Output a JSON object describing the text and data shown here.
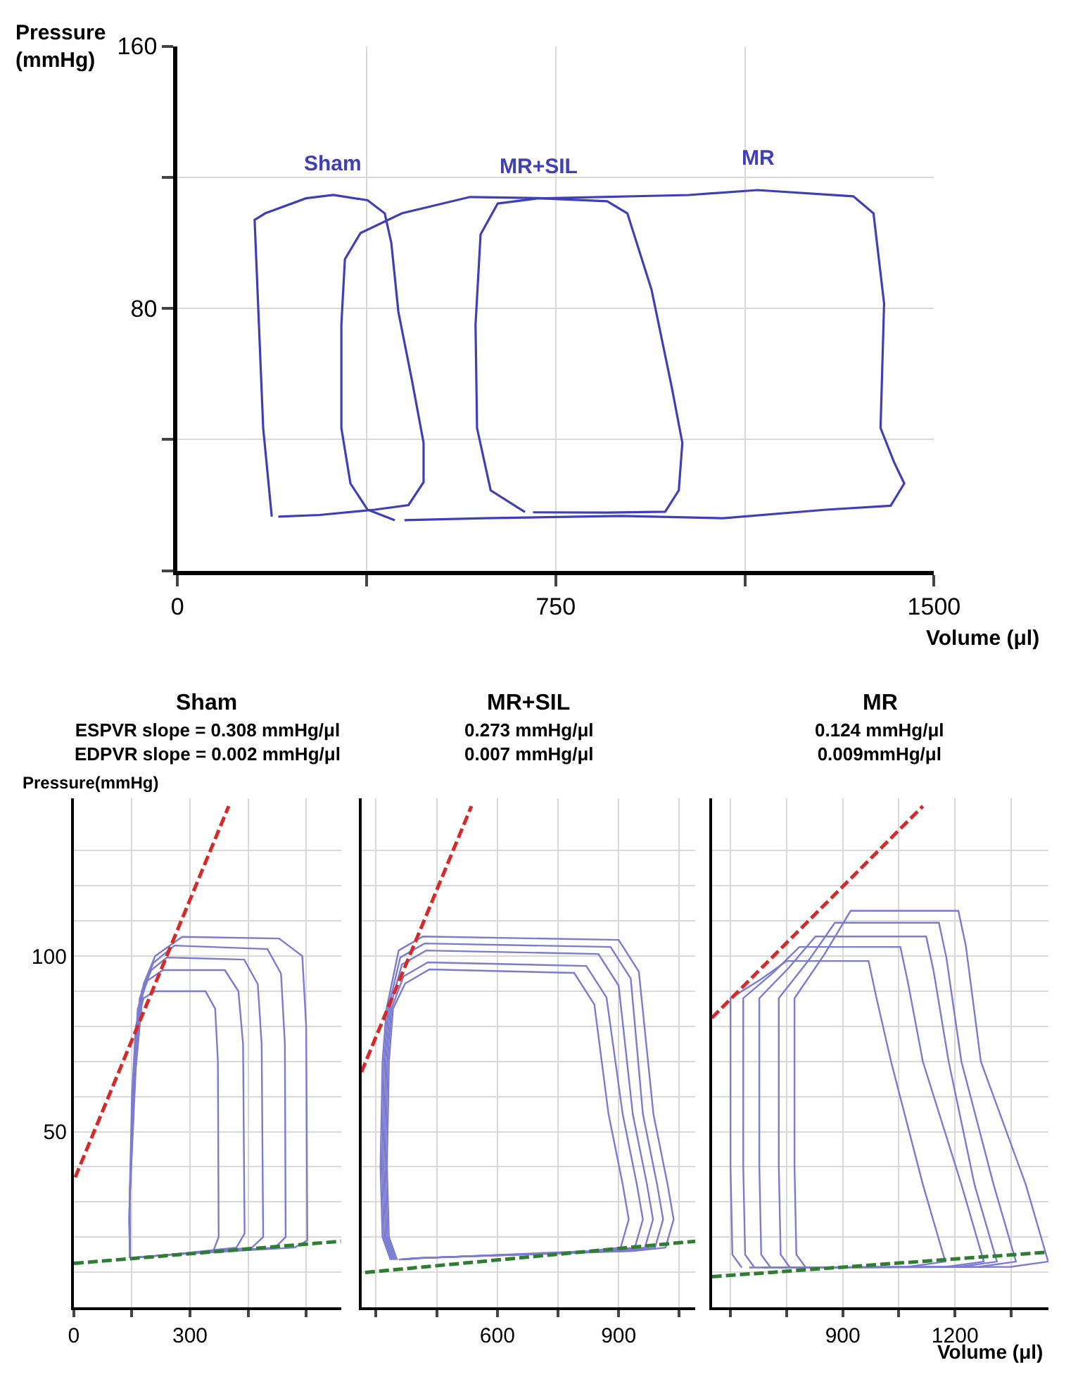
{
  "chart_data": [
    {
      "type": "line",
      "xlabel": "Volume (μl)",
      "ylabel": "Pressure\n(mmHg)",
      "xlim": [
        0,
        1500
      ],
      "ylim": [
        0,
        160
      ],
      "xticks": [
        0,
        {
          "value": 375,
          "label": null
        },
        750,
        {
          "value": 1125,
          "label": null
        },
        1500
      ],
      "yticks": [
        {
          "value": 0,
          "label": null
        },
        {
          "value": 40,
          "label": null
        },
        80,
        {
          "value": 120,
          "label": null
        },
        160
      ],
      "grid": true,
      "series": [
        {
          "name": "Sham",
          "color": "#3f3fb5",
          "x": [
            187,
            170,
            153,
            174,
            255,
            309,
            377,
            411,
            424,
            438,
            465,
            488,
            488,
            458,
            391,
            282,
            200
          ],
          "values": [
            16.5,
            43.5,
            107,
            109,
            113.6,
            114.6,
            113,
            109,
            100,
            79,
            58,
            39,
            27,
            20,
            18.6,
            17,
            16.5
          ]
        },
        {
          "name": "MR+SIL",
          "color": "#3f3fb6",
          "x": [
            689,
            621,
            594,
            591,
            601,
            635,
            716,
            852,
            892,
            940,
            980,
            1001,
            994,
            967,
            852,
            705
          ],
          "values": [
            17.9,
            24.5,
            43.5,
            75,
            102.6,
            112,
            113.6,
            112.7,
            109,
            85.7,
            56,
            39,
            24.5,
            18,
            17.7,
            17.8
          ]
        },
        {
          "name": "MR",
          "color": "#3f3fb7",
          "x": [
            431,
            377,
            343,
            325,
            325,
            332,
            363,
            445,
            580,
            730,
            1014,
            1150,
            1340,
            1380,
            1401,
            1394,
            1421,
            1441,
            1414,
            1286,
            1082,
            879,
            608,
            450
          ],
          "values": [
            15.4,
            18.6,
            26.6,
            43.5,
            75,
            95,
            103,
            109,
            114,
            113.6,
            114.6,
            116.1,
            114.2,
            109,
            81.5,
            43.5,
            33,
            26.6,
            19.8,
            18.6,
            16,
            16.7,
            16,
            15.4
          ]
        }
      ]
    },
    {
      "type": "line",
      "title": "Sham",
      "subtitle": "ESPVR slope = 0.308 mmHg/μl\nEDPVR slope = 0.002 mmHg/μl",
      "ylabel": "Pressure(mmHg)",
      "xlim": [
        0,
        690
      ],
      "ylim": [
        0,
        145
      ],
      "xticks": [
        0,
        {
          "value": 150,
          "label": null
        },
        300,
        {
          "value": 450,
          "label": null
        },
        {
          "value": 600,
          "label": null
        }
      ],
      "yticks": [
        {
          "value": 0,
          "label": null
        },
        {
          "value": 10,
          "label": null
        },
        {
          "value": 20,
          "label": null
        },
        {
          "value": 30,
          "label": null
        },
        {
          "value": 40,
          "label": null
        },
        50,
        {
          "value": 60,
          "label": null
        },
        {
          "value": 70,
          "label": null
        },
        {
          "value": 80,
          "label": null
        },
        {
          "value": 90,
          "label": null
        },
        100,
        {
          "value": 110,
          "label": null
        },
        {
          "value": 120,
          "label": null
        },
        {
          "value": 130,
          "label": null
        }
      ],
      "grid": true,
      "series": [
        {
          "color": "#7b7bd0",
          "x": [
            145,
            143,
            150,
            160,
            180,
            210,
            340,
            365,
            372,
            374,
            360,
            250,
            165
          ],
          "values": [
            14,
            25,
            60,
            80,
            88,
            90,
            90,
            85,
            70,
            20,
            16,
            15,
            14.2
          ]
        },
        {
          "color": "#7b7bd0",
          "x": [
            145,
            143,
            152,
            165,
            190,
            230,
            390,
            425,
            437,
            441,
            420,
            250,
            165
          ],
          "values": [
            14,
            25,
            60,
            85,
            93,
            96,
            96,
            90,
            75,
            21,
            17,
            15,
            14.2
          ]
        },
        {
          "color": "#7b7bd0",
          "x": [
            145,
            144,
            155,
            170,
            200,
            240,
            440,
            475,
            485,
            489,
            460,
            250,
            165
          ],
          "values": [
            14,
            30,
            65,
            88,
            96,
            99.6,
            99,
            92,
            75,
            20,
            17,
            15,
            14.2
          ]
        },
        {
          "color": "#7b7bd0",
          "x": [
            145,
            144,
            157,
            175,
            205,
            260,
            500,
            535,
            545,
            547,
            520,
            250,
            165
          ],
          "values": [
            14,
            30,
            65,
            90,
            98,
            103,
            102,
            95,
            75,
            20,
            17,
            15,
            14.2
          ]
        },
        {
          "color": "#7b7bd0",
          "x": [
            145,
            144,
            160,
            180,
            210,
            280,
            530,
            590,
            600,
            603,
            570,
            250,
            165
          ],
          "values": [
            14,
            30,
            68,
            92,
            100,
            105.5,
            105,
            100,
            80,
            19,
            17,
            15,
            14.2
          ]
        },
        {
          "color": "#d42a2a",
          "line_style": "dashed",
          "x": [
            3.5,
            400
          ],
          "values": [
            37,
            142.7
          ]
        },
        {
          "color": "#2e7d32",
          "line_style": "dashed",
          "x": [
            0,
            690
          ],
          "values": [
            12.5,
            18.8
          ]
        }
      ],
      "tick_labels": "xy"
    },
    {
      "type": "line",
      "title": "MR+SIL",
      "subtitle": "0.273 mmHg/μl\n0.007 mmHg/μl",
      "xlim": [
        264,
        1090
      ],
      "ylim": [
        0,
        145
      ],
      "xticks": [
        {
          "value": 300,
          "label": null
        },
        {
          "value": 450,
          "label": null
        },
        600,
        {
          "value": 750,
          "label": null
        },
        900,
        {
          "value": 1050,
          "label": null
        }
      ],
      "yticks": [
        {
          "value": 0,
          "label": null
        },
        {
          "value": 10,
          "label": null
        },
        {
          "value": 20,
          "label": null
        },
        {
          "value": 30,
          "label": null
        },
        {
          "value": 40,
          "label": null
        },
        {
          "value": 50,
          "label": null
        },
        {
          "value": 60,
          "label": null
        },
        {
          "value": 70,
          "label": null
        },
        {
          "value": 80,
          "label": null
        },
        {
          "value": 90,
          "label": null
        },
        {
          "value": 100,
          "label": null
        },
        {
          "value": 110,
          "label": null
        },
        {
          "value": 120,
          "label": null
        },
        {
          "value": 130,
          "label": null
        }
      ],
      "grid": true,
      "tick_labels": "x",
      "series": [
        {
          "color": "#7b7bd0",
          "x": [
            352,
            332,
            327,
            332,
            342,
            372,
            432,
            790,
            840,
            875,
            910,
            925,
            905,
            825,
            412,
            372
          ],
          "values": [
            13.5,
            20,
            40,
            70,
            85,
            92.2,
            96.2,
            95.2,
            86.2,
            55,
            35,
            25,
            17,
            16,
            14,
            13.6
          ]
        },
        {
          "color": "#7b7bd0",
          "x": [
            348,
            328,
            323,
            328,
            338,
            368,
            428,
            820,
            870,
            910,
            945,
            960,
            940,
            860,
            408,
            368
          ],
          "values": [
            13.5,
            20,
            40,
            70,
            85,
            94.2,
            98.2,
            97.2,
            88.2,
            55,
            35,
            25,
            17,
            16,
            14,
            13.6
          ]
        },
        {
          "color": "#7b7bd0",
          "x": [
            344,
            324,
            319,
            324,
            334,
            364,
            424,
            850,
            900,
            935,
            970,
            985,
            965,
            885,
            404,
            364
          ],
          "values": [
            13.5,
            20,
            40,
            70,
            85,
            97.6,
            101.6,
            100.6,
            91.6,
            55,
            35,
            25,
            17,
            16,
            14,
            13.6
          ]
        },
        {
          "color": "#7b7bd0",
          "x": [
            340,
            320,
            315,
            320,
            330,
            360,
            420,
            880,
            930,
            960,
            995,
            1010,
            990,
            910,
            400,
            360
          ],
          "values": [
            13.5,
            20,
            40,
            70,
            85,
            99.6,
            103.6,
            102.6,
            93.6,
            55,
            35,
            25,
            17,
            16,
            14,
            13.6
          ]
        },
        {
          "color": "#7b7bd0",
          "x": [
            336,
            316,
            311,
            316,
            326,
            356,
            416,
            900,
            950,
            986,
            1021,
            1036,
            1016,
            936,
            396,
            356
          ],
          "values": [
            13.5,
            20,
            40,
            70,
            85,
            101.6,
            105.6,
            104.6,
            95.6,
            55,
            35,
            25,
            17,
            16,
            14,
            13.6
          ]
        },
        {
          "color": "#d42a2a",
          "line_style": "dashed",
          "x": [
            264,
            536
          ],
          "values": [
            67,
            142.7
          ]
        },
        {
          "color": "#2e7d32",
          "line_style": "dashed",
          "x": [
            273,
            1090
          ],
          "values": [
            9.9,
            18.8
          ]
        }
      ]
    },
    {
      "type": "line",
      "title": "MR",
      "subtitle": "0.124 mmHg/μl\n0.009mmHg/μl",
      "xlabel": "Volume (μl)",
      "xlim": [
        550,
        1450
      ],
      "ylim": [
        0,
        145
      ],
      "xticks": [
        {
          "value": 600,
          "label": null
        },
        {
          "value": 750,
          "label": null
        },
        900,
        {
          "value": 1050,
          "label": null
        },
        1200,
        {
          "value": 1350,
          "label": null
        }
      ],
      "yticks": [
        {
          "value": 0,
          "label": null
        },
        {
          "value": 10,
          "label": null
        },
        {
          "value": 20,
          "label": null
        },
        {
          "value": 30,
          "label": null
        },
        {
          "value": 40,
          "label": null
        },
        {
          "value": 50,
          "label": null
        },
        {
          "value": 60,
          "label": null
        },
        {
          "value": 70,
          "label": null
        },
        {
          "value": 80,
          "label": null
        },
        {
          "value": 90,
          "label": null
        },
        {
          "value": 100,
          "label": null
        },
        {
          "value": 110,
          "label": null
        },
        {
          "value": 120,
          "label": null
        },
        {
          "value": 130,
          "label": null
        }
      ],
      "grid": true,
      "tick_labels": "x",
      "series": [
        {
          "color": "#7b7bd0",
          "x": [
            630,
            605,
            600,
            600,
            600,
            680,
            750,
            969,
            989,
            1029,
            1114,
            1174,
            1074,
            650
          ],
          "values": [
            11.3,
            15,
            40,
            70,
            88,
            93.3,
            98.6,
            98.6,
            88.6,
            70,
            35,
            13,
            11.5,
            11.3
          ]
        },
        {
          "color": "#7b7bd0",
          "x": [
            664,
            639,
            634,
            634,
            634,
            714,
            784,
            1054,
            1074,
            1114,
            1217,
            1277,
            1177,
            684
          ],
          "values": [
            11.3,
            15,
            40,
            70,
            88,
            95.3,
            102.6,
            102.6,
            92.6,
            70,
            35,
            13,
            11.5,
            11.3
          ]
        },
        {
          "color": "#7b7bd0",
          "x": [
            707,
            682,
            677,
            677,
            677,
            757,
            827,
            1123,
            1143,
            1183,
            1252,
            1312,
            1212,
            727
          ],
          "values": [
            11.3,
            15,
            40,
            70,
            88,
            96.8,
            105.6,
            105.6,
            95.6,
            70,
            35,
            13,
            11.5,
            11.3
          ]
        },
        {
          "color": "#7b7bd0",
          "x": [
            759,
            734,
            729,
            729,
            729,
            809,
            879,
            1157,
            1177,
            1217,
            1303,
            1363,
            1263,
            779
          ],
          "values": [
            11.3,
            15,
            40,
            70,
            88,
            98.8,
            109.5,
            109.5,
            99.5,
            70,
            35,
            13,
            11.5,
            11.3
          ]
        },
        {
          "color": "#7b7bd0",
          "x": [
            801,
            776,
            771,
            771,
            771,
            851,
            921,
            1209,
            1229,
            1269,
            1389,
            1449,
            1349,
            821
          ],
          "values": [
            11.3,
            15,
            40,
            70,
            88,
            100.5,
            112.9,
            112.9,
            102.9,
            70,
            35,
            13,
            11.5,
            11.3
          ]
        },
        {
          "color": "#d42a2a",
          "line_style": "dashed",
          "x": [
            550,
            1114
          ],
          "values": [
            82.4,
            142.7
          ]
        },
        {
          "color": "#2e7d32",
          "line_style": "dashed",
          "x": [
            550,
            1450
          ],
          "values": [
            8.7,
            15.7
          ]
        }
      ]
    }
  ]
}
